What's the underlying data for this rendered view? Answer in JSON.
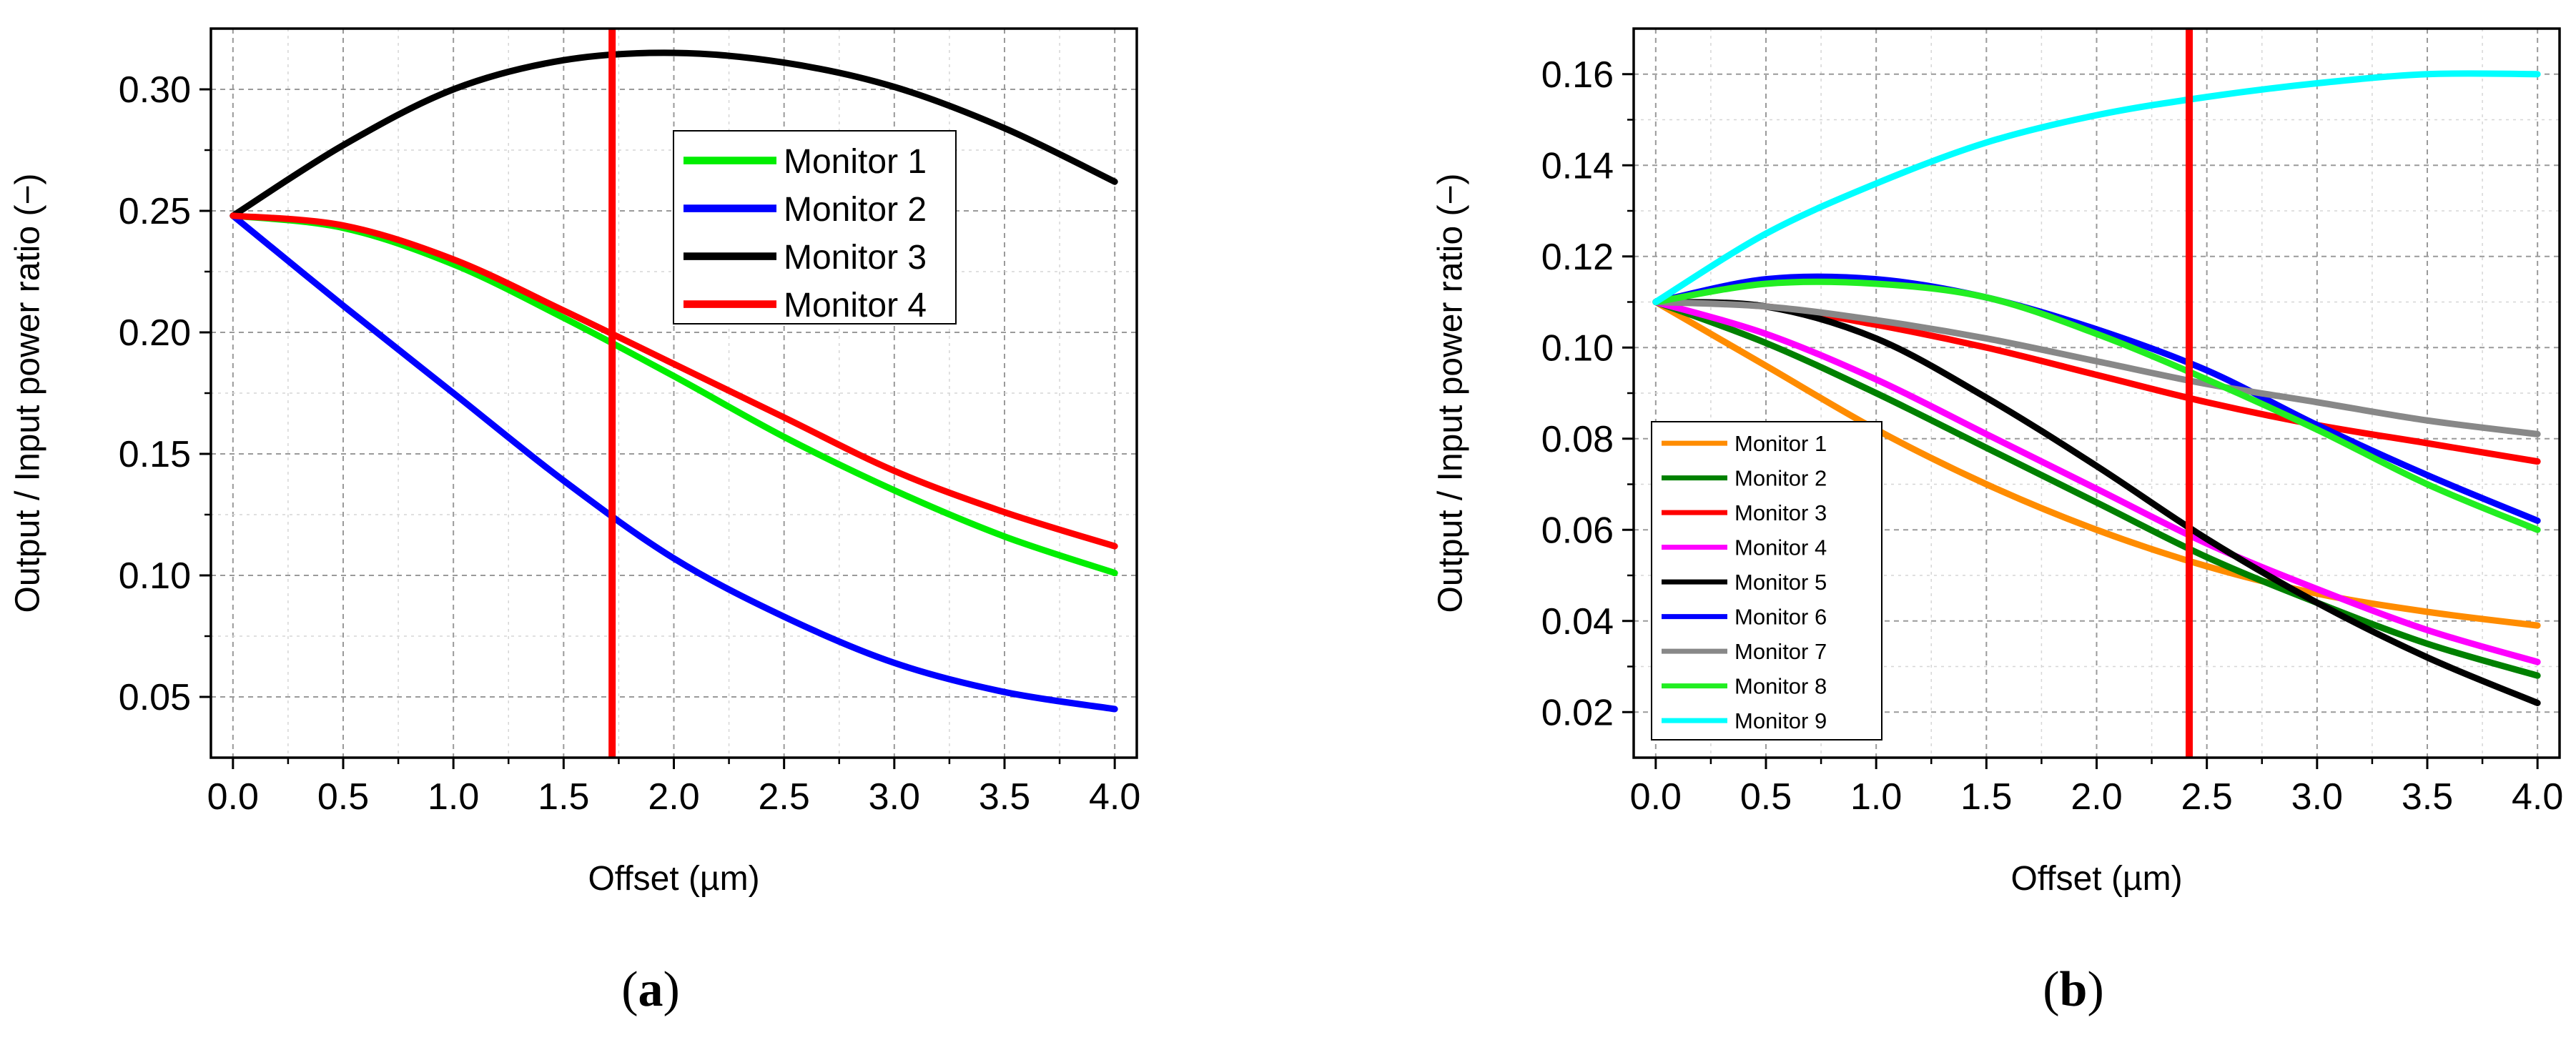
{
  "captions": {
    "a_open": "(",
    "a_letter": "a",
    "a_close": ")",
    "b_open": "(",
    "b_letter": "b",
    "b_close": ")"
  },
  "chart_data": [
    {
      "panel": "a",
      "type": "line",
      "xlabel": "Offset (µm)",
      "ylabel": "Output / Input power ratio (−)",
      "xlim": [
        -0.1,
        4.1
      ],
      "ylim": [
        0.025,
        0.325
      ],
      "xticks": [
        0.0,
        0.5,
        1.0,
        1.5,
        2.0,
        2.5,
        3.0,
        3.5,
        4.0
      ],
      "xtick_labels": [
        "0.0",
        "0.5",
        "1.0",
        "1.5",
        "2.0",
        "2.5",
        "3.0",
        "3.5",
        "4.0"
      ],
      "yticks": [
        0.05,
        0.1,
        0.15,
        0.2,
        0.25,
        0.3
      ],
      "ytick_labels": [
        "0.05",
        "0.10",
        "0.15",
        "0.20",
        "0.25",
        "0.30"
      ],
      "grid": true,
      "legend_position": "top-right",
      "vline": {
        "x": 1.72,
        "color": "#ff0000"
      },
      "x": [
        0.0,
        0.5,
        1.0,
        1.5,
        2.0,
        2.5,
        3.0,
        3.5,
        4.0
      ],
      "series": [
        {
          "name": "Monitor 1",
          "color": "#00ee00",
          "values": [
            0.248,
            0.243,
            0.228,
            0.206,
            0.182,
            0.157,
            0.135,
            0.116,
            0.101
          ]
        },
        {
          "name": "Monitor 2",
          "color": "#0000ff",
          "values": [
            0.248,
            0.211,
            0.175,
            0.139,
            0.107,
            0.083,
            0.064,
            0.052,
            0.045
          ]
        },
        {
          "name": "Monitor 3",
          "color": "#000000",
          "values": [
            0.248,
            0.277,
            0.3,
            0.312,
            0.315,
            0.311,
            0.301,
            0.284,
            0.262
          ]
        },
        {
          "name": "Monitor 4",
          "color": "#ff0000",
          "values": [
            0.248,
            0.244,
            0.23,
            0.209,
            0.187,
            0.165,
            0.143,
            0.126,
            0.112
          ]
        }
      ]
    },
    {
      "panel": "b",
      "type": "line",
      "xlabel": "Offset (µm)",
      "ylabel": "Output / Input power ratio (−)",
      "xlim": [
        -0.1,
        4.1
      ],
      "ylim": [
        0.01,
        0.17
      ],
      "xticks": [
        0.0,
        0.5,
        1.0,
        1.5,
        2.0,
        2.5,
        3.0,
        3.5,
        4.0
      ],
      "xtick_labels": [
        "0.0",
        "0.5",
        "1.0",
        "1.5",
        "2.0",
        "2.5",
        "3.0",
        "3.5",
        "4.0"
      ],
      "yticks": [
        0.02,
        0.04,
        0.06,
        0.08,
        0.1,
        0.12,
        0.14,
        0.16
      ],
      "ytick_labels": [
        "0.02",
        "0.04",
        "0.06",
        "0.08",
        "0.10",
        "0.12",
        "0.14",
        "0.16"
      ],
      "grid": true,
      "legend_position": "bottom-left",
      "vline": {
        "x": 2.42,
        "color": "#ff0000"
      },
      "x": [
        0.0,
        0.5,
        1.0,
        1.5,
        2.0,
        2.5,
        3.0,
        3.5,
        4.0
      ],
      "series": [
        {
          "name": "Monitor 1",
          "color": "#ff8c00",
          "values": [
            0.11,
            0.096,
            0.082,
            0.07,
            0.06,
            0.052,
            0.046,
            0.042,
            0.039
          ]
        },
        {
          "name": "Monitor 2",
          "color": "#008000",
          "values": [
            0.11,
            0.101,
            0.09,
            0.078,
            0.066,
            0.054,
            0.044,
            0.035,
            0.028
          ]
        },
        {
          "name": "Monitor 3",
          "color": "#ff0000",
          "values": [
            0.11,
            0.109,
            0.105,
            0.1,
            0.094,
            0.088,
            0.083,
            0.079,
            0.075
          ]
        },
        {
          "name": "Monitor 4",
          "color": "#ff00ff",
          "values": [
            0.11,
            0.103,
            0.093,
            0.081,
            0.069,
            0.057,
            0.047,
            0.038,
            0.031
          ]
        },
        {
          "name": "Monitor 5",
          "color": "#000000",
          "values": [
            0.11,
            0.109,
            0.102,
            0.089,
            0.074,
            0.058,
            0.044,
            0.032,
            0.022
          ]
        },
        {
          "name": "Monitor 6",
          "color": "#0000ff",
          "values": [
            0.11,
            0.115,
            0.115,
            0.111,
            0.104,
            0.095,
            0.083,
            0.072,
            0.062
          ]
        },
        {
          "name": "Monitor 7",
          "color": "#888888",
          "values": [
            0.11,
            0.109,
            0.106,
            0.102,
            0.097,
            0.092,
            0.088,
            0.084,
            0.081
          ]
        },
        {
          "name": "Monitor 8",
          "color": "#22ee22",
          "values": [
            0.11,
            0.114,
            0.114,
            0.111,
            0.103,
            0.093,
            0.082,
            0.07,
            0.06
          ]
        },
        {
          "name": "Monitor 9",
          "color": "#00ffff",
          "values": [
            0.11,
            0.125,
            0.136,
            0.145,
            0.151,
            0.155,
            0.158,
            0.16,
            0.16
          ]
        }
      ]
    }
  ]
}
